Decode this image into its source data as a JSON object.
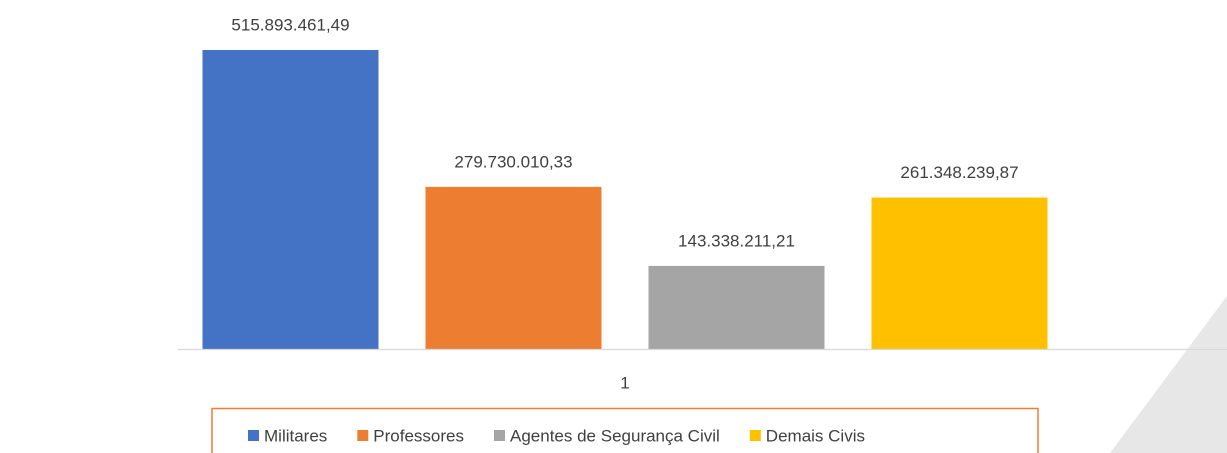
{
  "chart_data": {
    "type": "bar",
    "categories": [
      "1"
    ],
    "series": [
      {
        "name": "Militares",
        "color": "#4472c4",
        "values": [
          515893461.49
        ],
        "value_labels": [
          "515.893.461,49"
        ]
      },
      {
        "name": "Professores",
        "color": "#ed7d31",
        "values": [
          279730010.33
        ],
        "value_labels": [
          "279.730.010,33"
        ]
      },
      {
        "name": "Agentes de Segurança Civil",
        "color": "#a5a5a5",
        "values": [
          143338211.21
        ],
        "value_labels": [
          "143.338.211,21"
        ]
      },
      {
        "name": "Demais Civis",
        "color": "#ffc000",
        "values": [
          261348239.87
        ],
        "value_labels": [
          "261.348.239,87"
        ]
      }
    ],
    "ylim": [
      0,
      600000000
    ],
    "legend": "bottom"
  }
}
